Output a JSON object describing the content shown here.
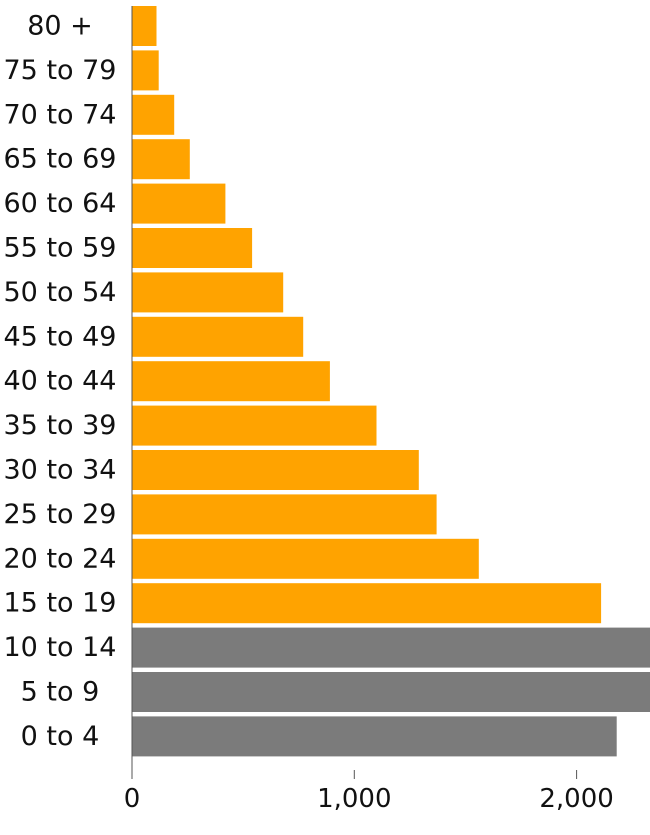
{
  "chart_data": {
    "type": "bar",
    "orientation": "horizontal",
    "title": "",
    "xlabel": "",
    "ylabel": "",
    "categories": [
      "80 +",
      "75 to 79",
      "70 to 74",
      "65 to 69",
      "60 to 64",
      "55 to 59",
      "50 to 54",
      "45 to 49",
      "40 to 44",
      "35 to 39",
      "30 to 34",
      "25 to 29",
      "20 to 24",
      "15 to 19",
      "10 to 14",
      "5 to 9",
      "0 to 4"
    ],
    "values": [
      110,
      120,
      190,
      260,
      420,
      540,
      680,
      770,
      890,
      1100,
      1290,
      1370,
      1560,
      2110,
      2330,
      2330,
      2180
    ],
    "highlight": [
      true,
      true,
      true,
      true,
      true,
      true,
      true,
      true,
      true,
      true,
      true,
      true,
      true,
      true,
      false,
      false,
      false
    ],
    "colors": {
      "highlight": "#ffa300",
      "other": "#7b7b7b"
    },
    "xlim": [
      0,
      2330
    ],
    "xticks": [
      0,
      1000,
      2000
    ],
    "xtick_labels": [
      "0",
      "1,000",
      "2,000"
    ],
    "grid": false,
    "legend": "none"
  }
}
